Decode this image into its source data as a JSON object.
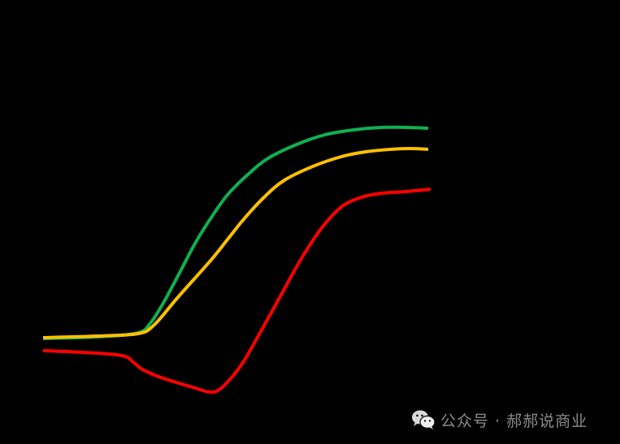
{
  "chart_data": {
    "type": "line",
    "title": "",
    "xlabel": "",
    "ylabel": "",
    "grid": false,
    "legend": null,
    "background": "#000000",
    "note": "Unlabeled illustrative S-curves; coordinates given in pixel space (x right, y down) of a 763x547 canvas.",
    "series": [
      {
        "name": "green-curve",
        "color": "#10b050",
        "points": [
          [
            53,
            417
          ],
          [
            120,
            415
          ],
          [
            170,
            410
          ],
          [
            185,
            398
          ],
          [
            200,
            375
          ],
          [
            220,
            338
          ],
          [
            240,
            300
          ],
          [
            260,
            268
          ],
          [
            280,
            240
          ],
          [
            305,
            215
          ],
          [
            330,
            195
          ],
          [
            365,
            178
          ],
          [
            400,
            166
          ],
          [
            435,
            160
          ],
          [
            470,
            157
          ],
          [
            500,
            157
          ],
          [
            527,
            158
          ]
        ]
      },
      {
        "name": "yellow-curve",
        "color": "#ffc000",
        "points": [
          [
            53,
            416
          ],
          [
            120,
            414
          ],
          [
            170,
            411
          ],
          [
            190,
            400
          ],
          [
            220,
            365
          ],
          [
            260,
            320
          ],
          [
            280,
            295
          ],
          [
            300,
            270
          ],
          [
            325,
            243
          ],
          [
            350,
            222
          ],
          [
            385,
            205
          ],
          [
            420,
            193
          ],
          [
            450,
            187
          ],
          [
            480,
            184
          ],
          [
            505,
            183
          ],
          [
            527,
            184
          ]
        ]
      },
      {
        "name": "red-curve",
        "color": "#ff0000",
        "points": [
          [
            53,
            432
          ],
          [
            100,
            434
          ],
          [
            150,
            438
          ],
          [
            165,
            447
          ],
          [
            175,
            455
          ],
          [
            195,
            464
          ],
          [
            220,
            472
          ],
          [
            240,
            478
          ],
          [
            258,
            483
          ],
          [
            270,
            480
          ],
          [
            285,
            465
          ],
          [
            300,
            445
          ],
          [
            320,
            410
          ],
          [
            345,
            365
          ],
          [
            370,
            320
          ],
          [
            395,
            282
          ],
          [
            420,
            255
          ],
          [
            445,
            243
          ],
          [
            470,
            238
          ],
          [
            500,
            236
          ],
          [
            530,
            233
          ]
        ]
      }
    ]
  },
  "watermark": {
    "icon": "wechat-icon",
    "text": "公众号 · 郝郝说商业",
    "color": "#8c8c8c"
  }
}
